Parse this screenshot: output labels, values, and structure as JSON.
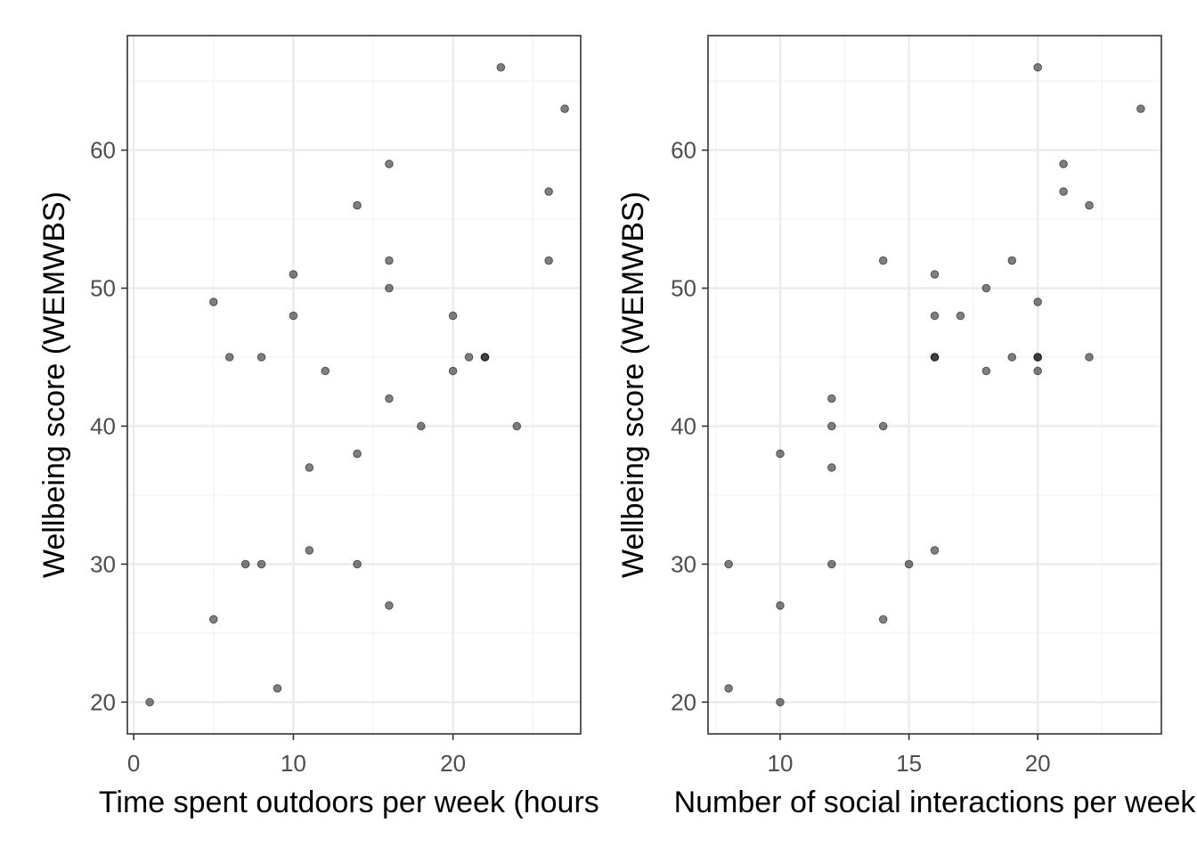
{
  "chart_data": [
    {
      "type": "scatter",
      "xlabel": "Time spent outdoors per week (hours)",
      "ylabel": "Wellbeing score (WEMWBS)",
      "xlim": [
        -0.4,
        28.0
      ],
      "ylim": [
        17.7,
        68.3
      ],
      "xticks": [
        0,
        10,
        20
      ],
      "yticks": [
        20,
        30,
        40,
        50,
        60
      ],
      "grid": true,
      "x": [
        1,
        5,
        5,
        6,
        7,
        8,
        8,
        9,
        10,
        10,
        11,
        11,
        12,
        14,
        14,
        14,
        16,
        16,
        16,
        16,
        16,
        18,
        20,
        20,
        21,
        22,
        22,
        23,
        24,
        26,
        26,
        27
      ],
      "y": [
        20,
        49,
        26,
        45,
        30,
        45,
        30,
        21,
        51,
        48,
        37,
        31,
        44,
        56,
        38,
        30,
        59,
        52,
        50,
        42,
        27,
        40,
        48,
        44,
        45,
        45,
        45,
        66,
        40,
        57,
        52,
        63
      ]
    },
    {
      "type": "scatter",
      "xlabel": "Number of social interactions per week",
      "ylabel": "Wellbeing score (WEMWBS)",
      "xlim": [
        7.2,
        24.8
      ],
      "ylim": [
        17.7,
        68.3
      ],
      "xticks": [
        10,
        15,
        20
      ],
      "yticks": [
        20,
        30,
        40,
        50,
        60
      ],
      "grid": true,
      "x": [
        8,
        8,
        10,
        10,
        10,
        12,
        12,
        12,
        12,
        14,
        14,
        14,
        15,
        16,
        16,
        16,
        16,
        16,
        17,
        18,
        18,
        19,
        19,
        20,
        20,
        20,
        20,
        20,
        21,
        21,
        22,
        22,
        24
      ],
      "y": [
        30,
        21,
        38,
        27,
        20,
        42,
        40,
        37,
        30,
        52,
        40,
        26,
        30,
        51,
        48,
        45,
        45,
        31,
        48,
        50,
        44,
        52,
        45,
        66,
        49,
        45,
        44,
        45,
        59,
        57,
        56,
        45,
        63
      ]
    }
  ]
}
